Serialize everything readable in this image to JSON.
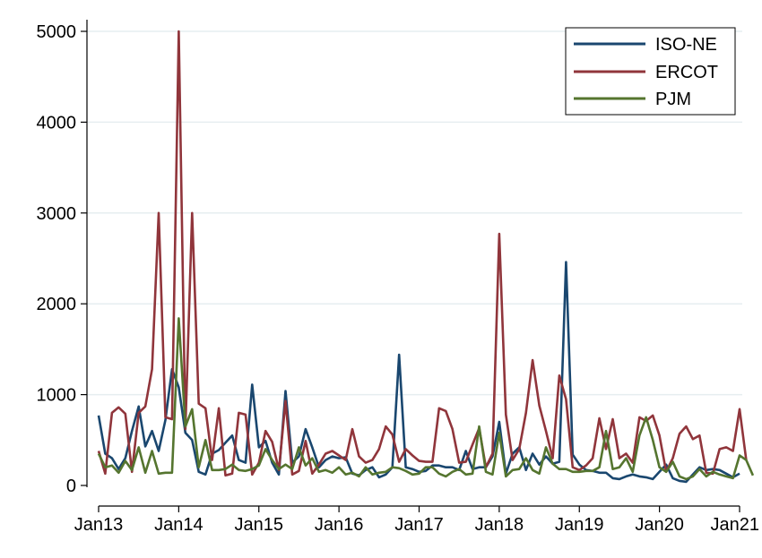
{
  "chart_data": {
    "type": "line",
    "title": "",
    "xlabel": "",
    "ylabel": "",
    "ylim": [
      0,
      5000
    ],
    "yticks": [
      0,
      1000,
      2000,
      3000,
      4000,
      5000
    ],
    "xlim": [
      2013,
      2021
    ],
    "xticks": [
      {
        "value": 2013,
        "label": "Jan13"
      },
      {
        "value": 2014,
        "label": "Jan14"
      },
      {
        "value": 2015,
        "label": "Jan15"
      },
      {
        "value": 2016,
        "label": "Jan16"
      },
      {
        "value": 2017,
        "label": "Jan17"
      },
      {
        "value": 2018,
        "label": "Jan18"
      },
      {
        "value": 2019,
        "label": "Jan19"
      },
      {
        "value": 2020,
        "label": "Jan20"
      },
      {
        "value": 2021,
        "label": "Jan21"
      }
    ],
    "grid": "horizontal",
    "legend_position": "top-right",
    "x_start": "Jan13",
    "x_step": "month",
    "series": [
      {
        "name": "ISO-NE",
        "color": "#1a476f",
        "values": [
          770,
          350,
          300,
          180,
          300,
          600,
          870,
          430,
          600,
          380,
          720,
          1280,
          1080,
          580,
          500,
          150,
          120,
          350,
          390,
          470,
          550,
          280,
          250,
          1110,
          420,
          490,
          250,
          120,
          1040,
          250,
          320,
          620,
          420,
          200,
          280,
          320,
          300,
          310,
          130,
          110,
          170,
          200,
          90,
          120,
          200,
          1440,
          200,
          180,
          150,
          160,
          220,
          220,
          200,
          200,
          170,
          380,
          180,
          200,
          200,
          320,
          700,
          130,
          350,
          420,
          170,
          350,
          230,
          320,
          240,
          260,
          2460,
          340,
          230,
          170,
          160,
          140,
          140,
          80,
          70,
          100,
          120,
          100,
          90,
          70,
          150,
          230,
          80,
          50,
          40,
          120,
          200,
          170,
          180,
          170,
          130,
          90,
          130
        ],
        "labels_series": "legend.iso_label"
      },
      {
        "name": "ERCOT",
        "color": "#90353b",
        "values": [
          380,
          130,
          800,
          860,
          790,
          150,
          800,
          870,
          1280,
          3000,
          750,
          730,
          5000,
          620,
          3000,
          900,
          850,
          280,
          850,
          110,
          130,
          800,
          780,
          120,
          250,
          600,
          480,
          170,
          930,
          120,
          160,
          490,
          130,
          230,
          350,
          380,
          330,
          280,
          620,
          320,
          250,
          280,
          400,
          650,
          560,
          260,
          400,
          330,
          270,
          260,
          260,
          850,
          820,
          620,
          250,
          260,
          450,
          630,
          200,
          350,
          2770,
          780,
          280,
          400,
          800,
          1380,
          880,
          600,
          300,
          1210,
          950,
          200,
          170,
          220,
          300,
          740,
          400,
          730,
          300,
          350,
          250,
          750,
          710,
          770,
          550,
          150,
          300,
          570,
          650,
          510,
          550,
          140,
          130,
          400,
          420,
          380,
          840,
          280
        ],
        "labels_series": "legend.ercot_label"
      },
      {
        "name": "PJM",
        "color": "#55752f",
        "values": [
          350,
          200,
          220,
          140,
          270,
          170,
          420,
          140,
          380,
          130,
          140,
          140,
          1840,
          650,
          840,
          200,
          500,
          170,
          170,
          180,
          230,
          170,
          160,
          180,
          220,
          400,
          280,
          180,
          230,
          180,
          420,
          220,
          300,
          150,
          170,
          140,
          200,
          120,
          140,
          100,
          200,
          120,
          140,
          150,
          200,
          190,
          160,
          120,
          130,
          200,
          200,
          130,
          100,
          150,
          180,
          120,
          130,
          650,
          150,
          120,
          580,
          100,
          170,
          180,
          300,
          170,
          130,
          420,
          240,
          180,
          180,
          150,
          150,
          160,
          160,
          200,
          600,
          180,
          200,
          300,
          150,
          550,
          750,
          500,
          200,
          150,
          260,
          100,
          70,
          100,
          180,
          100,
          150,
          120,
          100,
          80,
          330,
          280,
          110
        ],
        "labels_series": "legend.pjm_label"
      }
    ]
  },
  "legend": {
    "iso_label": "ISO-NE",
    "ercot_label": "ERCOT",
    "pjm_label": "PJM"
  }
}
